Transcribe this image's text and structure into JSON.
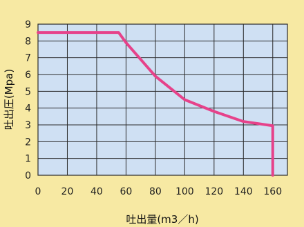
{
  "chart_data": {
    "type": "line",
    "xlabel": "吐出量(m3／h)",
    "ylabel": "吐出圧(Mpa)",
    "xlim": [
      0,
      170
    ],
    "ylim": [
      0,
      9
    ],
    "x_ticks": [
      0,
      20,
      40,
      60,
      80,
      100,
      120,
      140,
      160
    ],
    "y_ticks": [
      0,
      1,
      2,
      3,
      4,
      5,
      6,
      7,
      8,
      9
    ],
    "grid": true,
    "series": [
      {
        "x": [
          0,
          55,
          60,
          80,
          100,
          120,
          140,
          160,
          160
        ],
        "y": [
          8.5,
          8.5,
          7.9,
          5.9,
          4.5,
          3.8,
          3.2,
          2.95,
          0
        ],
        "color": "#e6428a"
      }
    ],
    "colors": {
      "background": "#f7e9a3",
      "plot_area": "#cfe0f3",
      "grid": "#2a2a2a",
      "line": "#e6428a"
    }
  }
}
